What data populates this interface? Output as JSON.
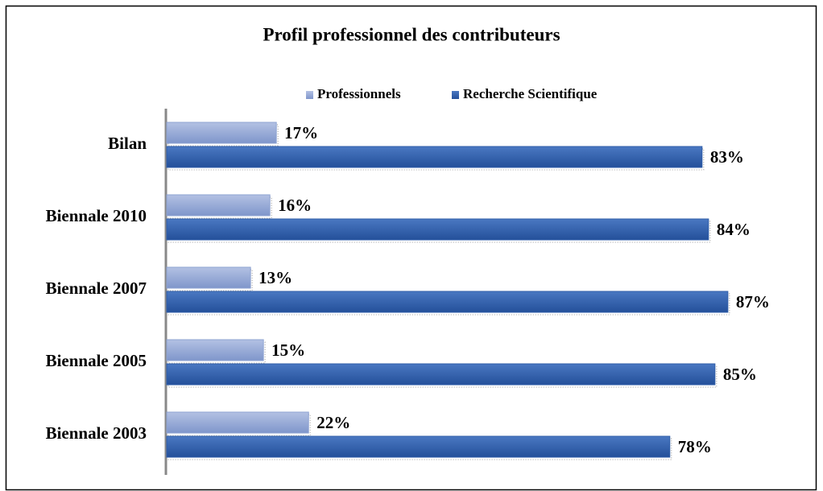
{
  "chart_data": {
    "type": "hbar",
    "title": "Profil professionnel des contributeurs",
    "categories": [
      "Bilan",
      "Biennale 2010",
      "Biennale 2007",
      "Biennale 2005",
      "Biennale 2003"
    ],
    "series": [
      {
        "name": "Professionnels",
        "color": "#8ea3d2",
        "values": [
          17,
          16,
          13,
          15,
          22
        ],
        "value_labels": [
          "17%",
          "16%",
          "13%",
          "15%",
          "22%"
        ]
      },
      {
        "name": "Recherche Scientifique",
        "color": "#2f5da8",
        "values": [
          83,
          84,
          87,
          85,
          78
        ],
        "value_labels": [
          "83%",
          "84%",
          "87%",
          "85%",
          "78%"
        ]
      }
    ],
    "legend": "top"
  }
}
